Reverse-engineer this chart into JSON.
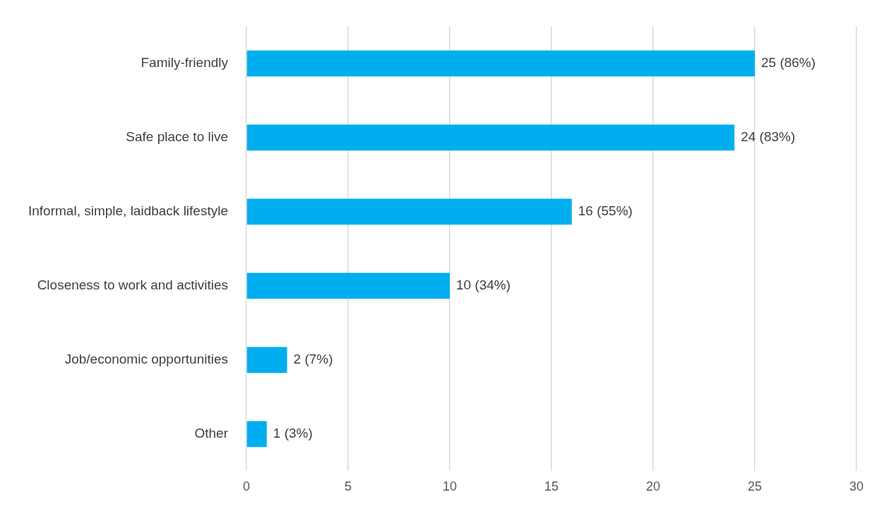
{
  "chart_data": {
    "type": "bar",
    "orientation": "horizontal",
    "categories": [
      "Family-friendly",
      "Safe place to live",
      "Informal, simple, laidback lifestyle",
      "Closeness to work and activities",
      "Job/economic opportunities",
      "Other"
    ],
    "values": [
      25,
      24,
      16,
      10,
      2,
      1
    ],
    "value_labels": [
      "25 (86%)",
      "24 (83%)",
      "16 (55%)",
      "10 (34%)",
      "2 (7%)",
      "1 (3%)"
    ],
    "color": "#00aeef",
    "xlim": [
      0,
      30
    ],
    "xticks": [
      0,
      5,
      10,
      15,
      20,
      25,
      30
    ],
    "grid": "x",
    "legend": false
  }
}
